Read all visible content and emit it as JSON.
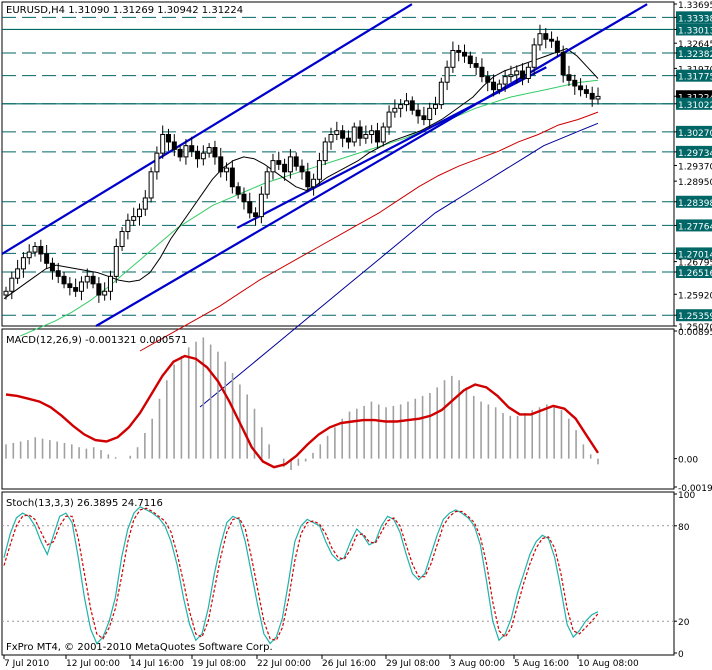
{
  "header": {
    "price_title": "EURUSD,H4  1.31090 1.31269 1.30942 1.31224",
    "macd_title": "MACD(12,26,9) -0.001321 0.000571",
    "stoch_title": "Stoch(13,3,3) 26.3895 24.7116",
    "copyright": "FxPro MT4, © 2001-2010 MetaQuotes Software Corp."
  },
  "chart_data": [
    {
      "type": "candlestick",
      "symbol": "EURUSD",
      "timeframe": "H4",
      "ylim": [
        1.2507,
        1.33695
      ],
      "x_ticks": [
        "7 Jul 2010",
        "12 Jul 00:00",
        "14 Jul 16:00",
        "19 Jul 08:00",
        "22 Jul 00:00",
        "26 Jul 16:00",
        "29 Jul 08:00",
        "3 Aug 00:00",
        "5 Aug 16:00",
        "10 Aug 08:00"
      ],
      "y_ticks": [
        "1.33695",
        "1.33338",
        "1.33013",
        "1.32645",
        "1.32382",
        "1.31970",
        "1.31775",
        "1.31224",
        "1.31022",
        "1.30270",
        "1.29734",
        "1.29370",
        "1.28950",
        "1.28398",
        "1.27764",
        "1.27014",
        "1.26795",
        "1.26516",
        "1.25920",
        "1.25359",
        "1.25070"
      ],
      "highlight_labels": {
        "current_price": "1.31224",
        "horizontal_levels": [
          "1.33338",
          "1.33013",
          "1.32382",
          "1.31775",
          "1.31022",
          "1.30270",
          "1.29734",
          "1.28398",
          "1.27764",
          "1.27014",
          "1.26516",
          "1.25359"
        ]
      },
      "colors": {
        "level_line": "#006666",
        "channel": "#0000cc",
        "ma_slow_red": "#cc0000",
        "ma_slowest_blue": "#000099",
        "ma_fast_black": "#000000",
        "ma_mid_green": "#33cc66",
        "candle": "#000000"
      },
      "horizontal_levels": [
        1.33338,
        1.33013,
        1.32382,
        1.31775,
        1.31022,
        1.3027,
        1.29734,
        1.28398,
        1.27764,
        1.27014,
        1.26516,
        1.25359
      ],
      "close_series": [
        1.26,
        1.2635,
        1.266,
        1.269,
        1.2705,
        1.272,
        1.27,
        1.2675,
        1.2655,
        1.264,
        1.262,
        1.261,
        1.26,
        1.2625,
        1.264,
        1.262,
        1.259,
        1.26,
        1.264,
        1.272,
        1.276,
        1.279,
        1.28,
        1.282,
        1.285,
        1.292,
        1.297,
        1.302,
        1.3,
        1.298,
        1.296,
        1.299,
        1.2975,
        1.2955,
        1.297,
        1.2985,
        1.296,
        1.292,
        1.293,
        1.288,
        1.286,
        1.284,
        1.281,
        1.28,
        1.286,
        1.292,
        1.295,
        1.294,
        1.292,
        1.296,
        1.2935,
        1.292,
        1.288,
        1.29,
        1.295,
        1.3,
        1.302,
        1.303,
        1.301,
        1.3,
        1.304,
        1.301,
        1.302,
        1.303,
        1.3,
        1.304,
        1.308,
        1.309,
        1.31,
        1.311,
        1.3085,
        1.307,
        1.306,
        1.309,
        1.31,
        1.316,
        1.32,
        1.3245,
        1.324,
        1.323,
        1.321,
        1.32,
        1.3175,
        1.316,
        1.314,
        1.3155,
        1.3175,
        1.318,
        1.319,
        1.317,
        1.32,
        1.326,
        1.329,
        1.3275,
        1.327,
        1.324,
        1.318,
        1.3165,
        1.315,
        1.314,
        1.313,
        1.3115,
        1.3122
      ],
      "ma_fast_black": [
        1.258,
        1.26,
        1.262,
        1.264,
        1.266,
        1.267,
        1.2665,
        1.266,
        1.2655,
        1.265,
        1.264,
        1.263,
        1.2625,
        1.263,
        1.265,
        1.269,
        1.274,
        1.278,
        1.282,
        1.286,
        1.29,
        1.293,
        1.295,
        1.296,
        1.2955,
        1.294,
        1.292,
        1.29,
        1.288,
        1.287,
        1.2885,
        1.2905,
        1.292,
        1.2935,
        1.295,
        1.297,
        1.2985,
        1.3,
        1.301,
        1.302,
        1.303,
        1.3045,
        1.306,
        1.308,
        1.31,
        1.312,
        1.315,
        1.3175,
        1.319,
        1.32,
        1.321,
        1.322,
        1.323,
        1.324,
        1.325,
        1.323,
        1.32,
        1.317
      ],
      "ma_mid_green": [
        1.248,
        1.25,
        1.252,
        1.2545,
        1.2575,
        1.261,
        1.265,
        1.269,
        1.273,
        1.277,
        1.28,
        1.283,
        1.285,
        1.287,
        1.289,
        1.2905,
        1.292,
        1.2935,
        1.295,
        1.2965,
        1.298,
        1.2995,
        1.301,
        1.303,
        1.305,
        1.307,
        1.309,
        1.3105,
        1.312,
        1.313,
        1.314,
        1.315,
        1.316,
        1.3165
      ],
      "ma_slow_red": [
        1.244,
        1.247,
        1.25,
        1.253,
        1.256,
        1.2595,
        1.263,
        1.266,
        1.269,
        1.272,
        1.275,
        1.278,
        1.281,
        1.2845,
        1.288,
        1.291,
        1.2935,
        1.2955,
        1.2975,
        1.3,
        1.302,
        1.3045,
        1.306,
        1.308
      ],
      "ma_slowest_blue": [
        1.229,
        1.233,
        1.237,
        1.241,
        1.245,
        1.249,
        1.253,
        1.257,
        1.261,
        1.265,
        1.269,
        1.273,
        1.277,
        1.281,
        1.284,
        1.287,
        1.29,
        1.293,
        1.296,
        1.299,
        1.301,
        1.303,
        1.305
      ],
      "channel_upper": [
        [
          0,
          1.27
        ],
        [
          0.61,
          1.3369
        ]
      ],
      "channel_mid": [
        [
          0.14,
          1.2507
        ],
        [
          0.96,
          1.3369
        ]
      ],
      "channel_lower": [
        [
          0.35,
          1.277
        ],
        [
          0.81,
          1.32
        ]
      ]
    },
    {
      "type": "macd",
      "name": "MACD(12,26,9)",
      "ylim": [
        -0.00199,
        0.00895
      ],
      "y_ticks": [
        "0.00895",
        "0.00",
        "-0.00199"
      ],
      "histogram": [
        0.001,
        0.0011,
        0.0012,
        0.0013,
        0.0015,
        0.0014,
        0.0013,
        0.0012,
        0.0011,
        0.001,
        0.0008,
        0.0007,
        0.0008,
        0.0006,
        0.0003,
        0.0001,
        0.0,
        0.0002,
        0.0008,
        0.0018,
        0.0028,
        0.0042,
        0.0055,
        0.0066,
        0.0072,
        0.0078,
        0.0082,
        0.0085,
        0.008,
        0.0075,
        0.0068,
        0.006,
        0.0052,
        0.0045,
        0.0035,
        0.0022,
        0.001,
        0.0,
        -0.0006,
        -0.0008,
        -0.0005,
        -0.0002,
        0.0004,
        0.001,
        0.0016,
        0.0022,
        0.0028,
        0.0033,
        0.0035,
        0.0037,
        0.004,
        0.0038,
        0.0036,
        0.0037,
        0.0038,
        0.004,
        0.0042,
        0.0044,
        0.0046,
        0.005,
        0.0055,
        0.0058,
        0.0055,
        0.005,
        0.0044,
        0.004,
        0.0038,
        0.0036,
        0.0032,
        0.003,
        0.003,
        0.0032,
        0.0034,
        0.0036,
        0.0038,
        0.0037,
        0.0034,
        0.0028,
        0.002,
        0.001,
        0.0003,
        -0.0004
      ],
      "signal": [
        0.0045,
        0.0044,
        0.0042,
        0.004,
        0.0036,
        0.003,
        0.0023,
        0.0017,
        0.0013,
        0.0012,
        0.0015,
        0.0022,
        0.0032,
        0.0045,
        0.0058,
        0.0068,
        0.0072,
        0.007,
        0.0064,
        0.0054,
        0.004,
        0.0024,
        0.0008,
        -0.0002,
        -0.0006,
        -0.0004,
        0.0002,
        0.001,
        0.0017,
        0.0022,
        0.0025,
        0.0026,
        0.0027,
        0.0027,
        0.0026,
        0.0026,
        0.0027,
        0.0028,
        0.003,
        0.0034,
        0.0041,
        0.0048,
        0.0052,
        0.005,
        0.0044,
        0.0036,
        0.0031,
        0.0031,
        0.0034,
        0.0037,
        0.0035,
        0.0028,
        0.0016,
        0.0004
      ]
    },
    {
      "type": "stochastic",
      "name": "Stoch(13,3,3)",
      "ylim": [
        0,
        100
      ],
      "y_ticks": [
        "100",
        "80",
        "20",
        "0"
      ],
      "k_main": [
        60,
        75,
        85,
        88,
        86,
        80,
        70,
        62,
        74,
        86,
        88,
        82,
        60,
        35,
        15,
        6,
        10,
        20,
        35,
        60,
        78,
        88,
        92,
        90,
        88,
        85,
        80,
        70,
        55,
        35,
        18,
        8,
        12,
        28,
        50,
        68,
        82,
        86,
        84,
        70,
        50,
        30,
        12,
        6,
        10,
        22,
        45,
        70,
        80,
        84,
        82,
        80,
        70,
        62,
        58,
        60,
        70,
        78,
        74,
        68,
        70,
        80,
        86,
        84,
        76,
        62,
        50,
        46,
        50,
        62,
        74,
        84,
        88,
        90,
        88,
        85,
        80,
        68,
        45,
        20,
        8,
        12,
        22,
        38,
        50,
        62,
        70,
        74,
        72,
        60,
        40,
        18,
        10,
        14,
        20,
        24,
        26
      ],
      "d_signal": [
        55,
        68,
        80,
        86,
        87,
        84,
        76,
        68,
        70,
        80,
        86,
        86,
        72,
        50,
        28,
        12,
        9,
        16,
        28,
        48,
        70,
        84,
        90,
        91,
        89,
        86,
        83,
        76,
        62,
        45,
        26,
        12,
        10,
        20,
        40,
        60,
        76,
        84,
        85,
        78,
        60,
        40,
        20,
        9,
        8,
        16,
        34,
        58,
        75,
        82,
        83,
        81,
        75,
        66,
        60,
        59,
        65,
        74,
        75,
        70,
        69,
        76,
        83,
        85,
        80,
        68,
        56,
        48,
        48,
        56,
        68,
        80,
        86,
        89,
        89,
        86,
        82,
        73,
        56,
        32,
        14,
        10,
        16,
        30,
        44,
        56,
        66,
        72,
        73,
        66,
        50,
        28,
        14,
        12,
        16,
        20,
        24.7
      ]
    }
  ]
}
